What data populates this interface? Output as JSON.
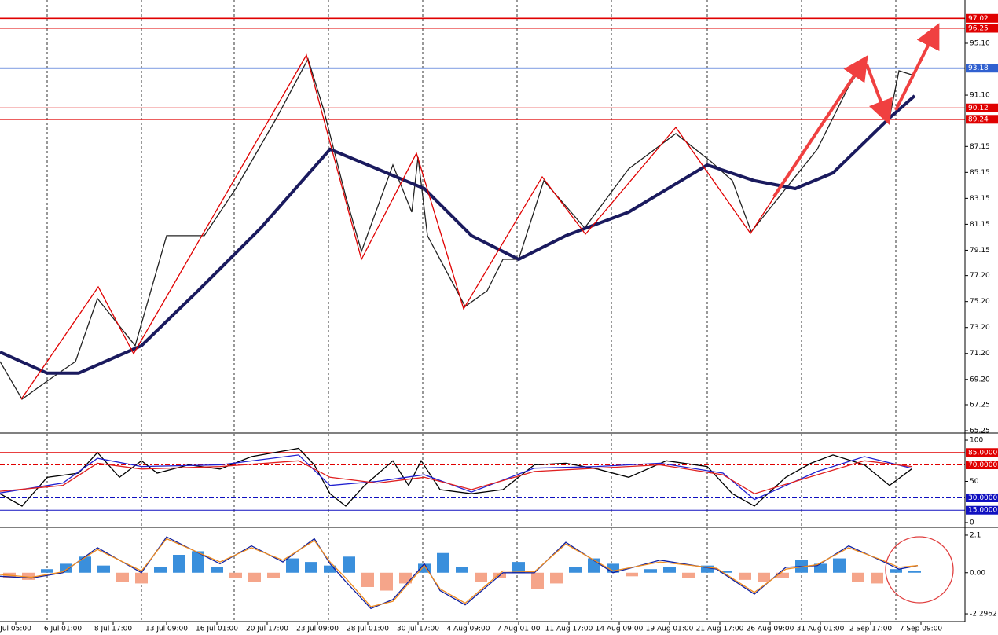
{
  "chart_data": [
    {
      "type": "line",
      "xlim": [
        0,
        307
      ],
      "ylim": [
        65.13,
        98.43
      ],
      "yticks": [
        {
          "value": 95.1,
          "label": "95.10"
        },
        {
          "value": 91.1,
          "label": "91.10"
        },
        87.15,
        85.15,
        83.15,
        81.15,
        79.15,
        {
          "value": 77.2,
          "label": "77.20"
        },
        {
          "value": 75.2,
          "label": "75.20"
        },
        {
          "value": 73.2,
          "label": "73.20"
        },
        {
          "value": 71.2,
          "label": "71.20"
        },
        {
          "value": 69.2,
          "label": "69.20"
        },
        67.25,
        65.25
      ],
      "levels": [
        {
          "value": 97.02,
          "color": "#e00000"
        },
        {
          "value": 96.25,
          "color": "#e00000"
        },
        {
          "value": 93.18,
          "color": "#3060d0"
        },
        {
          "value": 90.12,
          "color": "#e00000"
        },
        {
          "value": 89.24,
          "color": "#e00000"
        }
      ],
      "series": [
        {
          "color": "#222222",
          "x": [
            0,
            7,
            15,
            24,
            31,
            43,
            53,
            65,
            75,
            88,
            98,
            103,
            110,
            115,
            125,
            131,
            133,
            136,
            148,
            155,
            160,
            165,
            173,
            186,
            200,
            215,
            226,
            233,
            239,
            248,
            260,
            270,
            275,
            283,
            286,
            290
          ],
          "values": [
            70.58,
            67.68,
            69.07,
            70.58,
            75.43,
            71.8,
            80.27,
            80.27,
            83.9,
            89.35,
            93.89,
            89.96,
            83.3,
            79.06,
            85.72,
            82.09,
            86.32,
            80.27,
            74.82,
            76.03,
            78.45,
            78.45,
            84.51,
            80.87,
            85.42,
            88.14,
            86.02,
            84.51,
            80.57,
            83.3,
            86.93,
            91.77,
            93.59,
            89.35,
            92.98,
            92.68
          ]
        },
        {
          "color": "#1a1a5e",
          "x": [
            0,
            15,
            25,
            45,
            63,
            83,
            105,
            120,
            135,
            150,
            165,
            180,
            200,
            225,
            240,
            253,
            265,
            283,
            291
          ],
          "values": [
            71.31,
            69.68,
            69.68,
            71.8,
            76.03,
            80.87,
            86.93,
            85.42,
            83.9,
            80.27,
            78.45,
            80.27,
            82.09,
            85.72,
            84.51,
            83.9,
            85.11,
            89.35,
            91.05
          ]
        }
      ]
    },
    {
      "type": "line",
      "xlim": [
        0,
        307
      ],
      "ylim": [
        -4.8,
        106.7
      ],
      "yticks": [
        100,
        50,
        0
      ],
      "levels": [
        {
          "value": 85,
          "label": "85.0000",
          "color": "#e00000"
        },
        {
          "value": 70,
          "label": "70.0000",
          "color": "#e00000"
        },
        {
          "value": 30,
          "label": "30.0000",
          "color": "#1010c0"
        },
        {
          "value": 15,
          "label": "15.0000",
          "color": "#1010c0"
        }
      ],
      "series": [
        {
          "color": "#000000",
          "x": [
            0,
            7,
            15,
            25,
            31,
            38,
            45,
            50,
            60,
            70,
            80,
            95,
            100,
            105,
            110,
            116,
            125,
            130,
            134,
            140,
            150,
            160,
            170,
            180,
            190,
            200,
            212,
            225,
            233,
            240,
            250,
            258,
            265,
            275,
            283,
            290
          ],
          "values": [
            35,
            20,
            55,
            60,
            85,
            55,
            75,
            60,
            70,
            65,
            80,
            90,
            70,
            35,
            20,
            45,
            75,
            45,
            75,
            40,
            35,
            40,
            70,
            72,
            65,
            55,
            75,
            68,
            35,
            20,
            55,
            72,
            82,
            70,
            45,
            65
          ]
        },
        {
          "color": "#2020d0",
          "x": [
            0,
            20,
            31,
            45,
            70,
            95,
            105,
            120,
            135,
            150,
            170,
            190,
            210,
            230,
            240,
            260,
            275,
            290
          ],
          "values": [
            36,
            48,
            78,
            68,
            70,
            82,
            45,
            50,
            58,
            37,
            66,
            68,
            72,
            60,
            28,
            62,
            80,
            66
          ]
        },
        {
          "color": "#e02020",
          "x": [
            0,
            20,
            31,
            45,
            70,
            95,
            105,
            120,
            135,
            150,
            170,
            190,
            210,
            230,
            240,
            260,
            275,
            290
          ],
          "values": [
            38,
            45,
            72,
            65,
            68,
            75,
            55,
            48,
            55,
            40,
            62,
            66,
            70,
            58,
            35,
            58,
            75,
            68
          ]
        }
      ]
    },
    {
      "type": "line",
      "xlim": [
        0,
        307
      ],
      "ylim": [
        -2.69,
        2.45
      ],
      "yticks": [
        2.1,
        {
          "value": 0,
          "label": "0.00"
        },
        -2.2962
      ],
      "xticks": [
        {
          "value": 5,
          "label": "Jul 05:00"
        },
        {
          "value": 20,
          "label": "6 Jul 01:00"
        },
        {
          "value": 36,
          "label": "8 Jul 17:00"
        },
        {
          "value": 53,
          "label": "13 Jul 09:00"
        },
        {
          "value": 69,
          "label": "16 Jul 01:00"
        },
        {
          "value": 85,
          "label": "20 Jul 17:00"
        },
        {
          "value": 101,
          "label": "23 Jul 09:00"
        },
        {
          "value": 117,
          "label": "28 Jul 01:00"
        },
        {
          "value": 133,
          "label": "30 Jul 17:00"
        },
        {
          "value": 149,
          "label": "4 Aug 09:00"
        },
        {
          "value": 165,
          "label": "7 Aug 01:00"
        },
        {
          "value": 181,
          "label": "11 Aug 17:00"
        },
        {
          "value": 197,
          "label": "14 Aug 09:00"
        },
        {
          "value": 213,
          "label": "19 Aug 01:00"
        },
        {
          "value": 229,
          "label": "21 Aug 17:00"
        },
        {
          "value": 245,
          "label": "26 Aug 09:00"
        },
        {
          "value": 261,
          "label": "31 Aug 01:00"
        },
        {
          "value": 277,
          "label": "2 Sep 17:00"
        },
        {
          "value": 293,
          "label": "7 Sep 09:00"
        }
      ],
      "series": [
        {
          "type": "bar",
          "color_positive": "#3a8fdc",
          "color_negative": "#f5a58a",
          "x": [
            3,
            9,
            15,
            21,
            27,
            33,
            39,
            45,
            51,
            57,
            63,
            69,
            75,
            81,
            87,
            93,
            99,
            105,
            111,
            117,
            123,
            129,
            135,
            141,
            147,
            153,
            159,
            165,
            171,
            177,
            183,
            189,
            195,
            201,
            207,
            213,
            219,
            225,
            231,
            237,
            243,
            249,
            255,
            261,
            267,
            273,
            279,
            285,
            291
          ],
          "values": [
            -0.3,
            -0.4,
            0.2,
            0.5,
            0.9,
            0.4,
            -0.5,
            -0.6,
            0.3,
            1.0,
            1.2,
            0.3,
            -0.3,
            -0.5,
            -0.3,
            0.8,
            0.6,
            0.4,
            0.9,
            -0.8,
            -1.0,
            -0.6,
            0.5,
            1.1,
            0.3,
            -0.5,
            -0.3,
            0.6,
            -0.9,
            -0.6,
            0.3,
            0.8,
            0.5,
            -0.2,
            0.2,
            0.3,
            -0.3,
            0.4,
            0.1,
            -0.4,
            -0.5,
            -0.3,
            0.7,
            0.5,
            0.8,
            -0.5,
            -0.6,
            0.2,
            0.1
          ]
        },
        {
          "color": "#1020a0",
          "x": [
            0,
            10,
            20,
            31,
            45,
            53,
            70,
            80,
            90,
            100,
            105,
            110,
            118,
            125,
            135,
            140,
            148,
            160,
            170,
            180,
            195,
            210,
            228,
            240,
            250,
            260,
            270,
            280,
            286,
            292
          ],
          "values": [
            -0.2,
            -0.3,
            0,
            1.4,
            0,
            2.0,
            0.5,
            1.5,
            0.6,
            1.9,
            0.5,
            -0.5,
            -2.0,
            -1.5,
            0.5,
            -1.0,
            -1.8,
            0,
            0,
            1.7,
            0,
            0.7,
            0.2,
            -1.2,
            0.3,
            0.4,
            1.5,
            0.7,
            0.2,
            0.4
          ]
        },
        {
          "color": "#f08c1e",
          "x": [
            0,
            10,
            20,
            31,
            45,
            53,
            70,
            80,
            90,
            100,
            105,
            110,
            118,
            125,
            135,
            140,
            148,
            160,
            170,
            180,
            195,
            210,
            228,
            240,
            250,
            260,
            270,
            280,
            286,
            292
          ],
          "values": [
            -0.1,
            -0.25,
            0.05,
            1.3,
            0.1,
            1.9,
            0.6,
            1.4,
            0.7,
            1.8,
            0.6,
            -0.3,
            -1.9,
            -1.6,
            0.4,
            -0.9,
            -1.7,
            0.1,
            0.05,
            1.6,
            0.1,
            0.6,
            0.25,
            -1.1,
            0.2,
            0.45,
            1.4,
            0.75,
            0.3,
            0.4
          ]
        }
      ]
    }
  ]
}
